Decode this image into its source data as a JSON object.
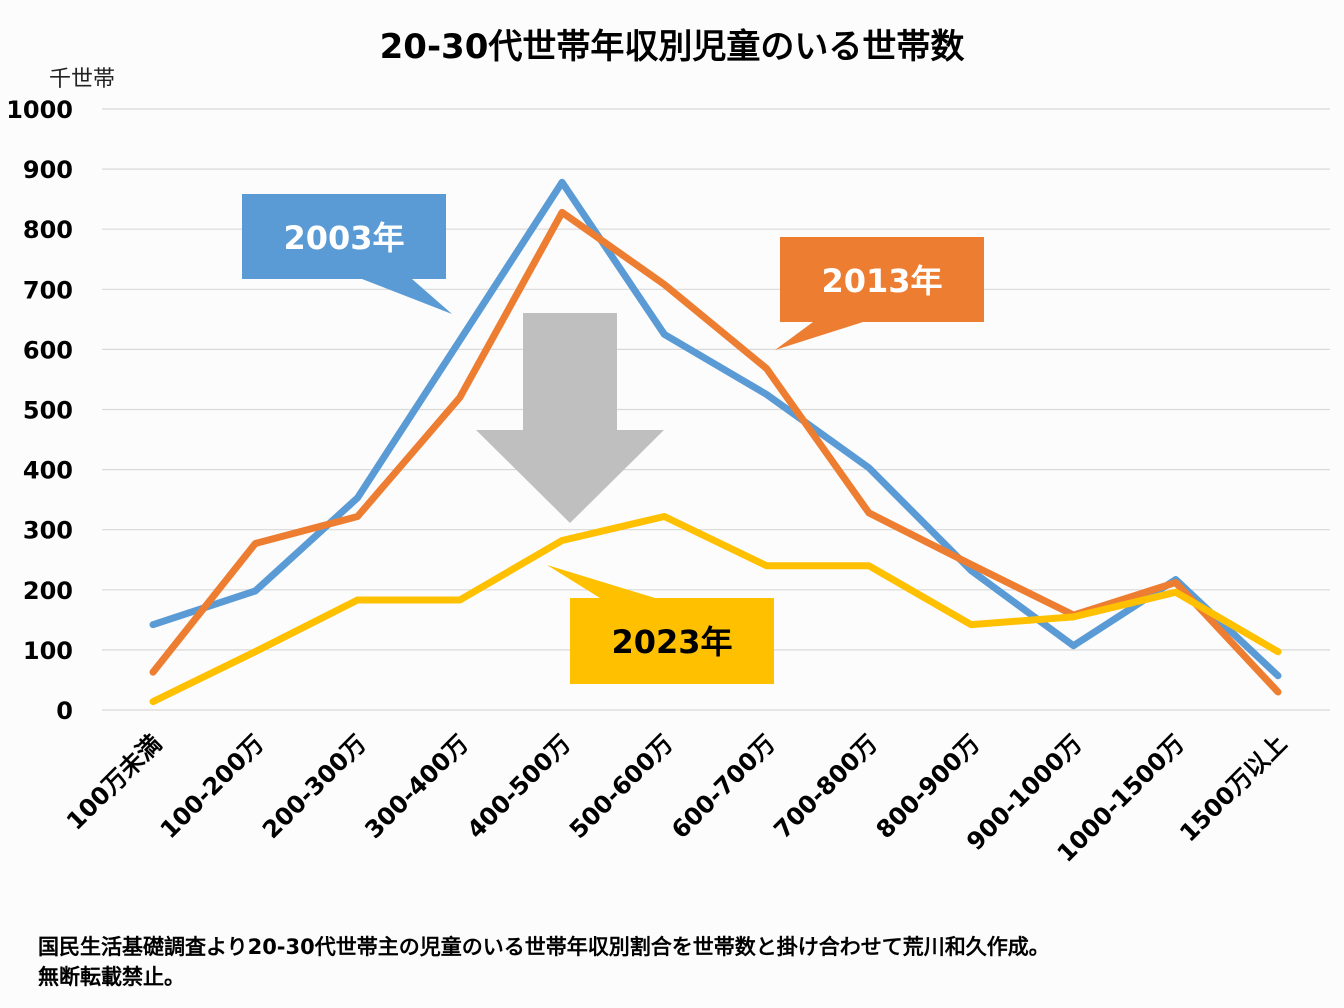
{
  "chart_data": {
    "type": "line",
    "title": "20-30代世帯年収別児童のいる世帯数",
    "ylabel": "千世帯",
    "xlabel": "",
    "ylim": [
      0,
      1000
    ],
    "yticks": [
      "0",
      "100",
      "200",
      "300",
      "400",
      "500",
      "600",
      "700",
      "800",
      "900",
      "1000"
    ],
    "ytick_values": [
      0,
      100,
      200,
      300,
      400,
      500,
      600,
      700,
      800,
      900,
      1000
    ],
    "grid": true,
    "categories": [
      "100万未満",
      "100-200万",
      "200-300万",
      "300-400万",
      "400-500万",
      "500-600万",
      "600-700万",
      "700-800万",
      "800-900万",
      "900-1000万",
      "1000-1500万",
      "1500万以上"
    ],
    "series": [
      {
        "name": "2003年",
        "color": "#5B9BD5",
        "values": [
          142,
          198,
          353,
          615,
          878,
          625,
          525,
          403,
          232,
          107,
          217,
          57
        ]
      },
      {
        "name": "2013年",
        "color": "#ED7D31",
        "values": [
          63,
          277,
          322,
          520,
          828,
          708,
          568,
          328,
          242,
          158,
          212,
          30
        ]
      },
      {
        "name": "2023年",
        "color": "#FFC000",
        "values": [
          14,
          97,
          183,
          183,
          282,
          322,
          240,
          240,
          142,
          155,
          196,
          97
        ]
      }
    ],
    "annotations": [
      {
        "text": "2003年",
        "series": "2003年",
        "bg": "#5B9BD5",
        "color": "#FFFFFF"
      },
      {
        "text": "2013年",
        "series": "2013年",
        "bg": "#ED7D31",
        "color": "#FFFFFF"
      },
      {
        "text": "2023年",
        "series": "2023年",
        "bg": "#FFC000",
        "color": "#000000"
      },
      {
        "shape": "down-arrow",
        "color": "#BFBFBF",
        "meaning": "decrease"
      }
    ],
    "legend": "none (callout labels)"
  },
  "footnote": {
    "line1": "国民生活基礎調査より20-30代世帯主の児童のいる世帯年収別割合を世帯数と掛け合わせて荒川和久作成。",
    "line2": "無断転載禁止。"
  }
}
